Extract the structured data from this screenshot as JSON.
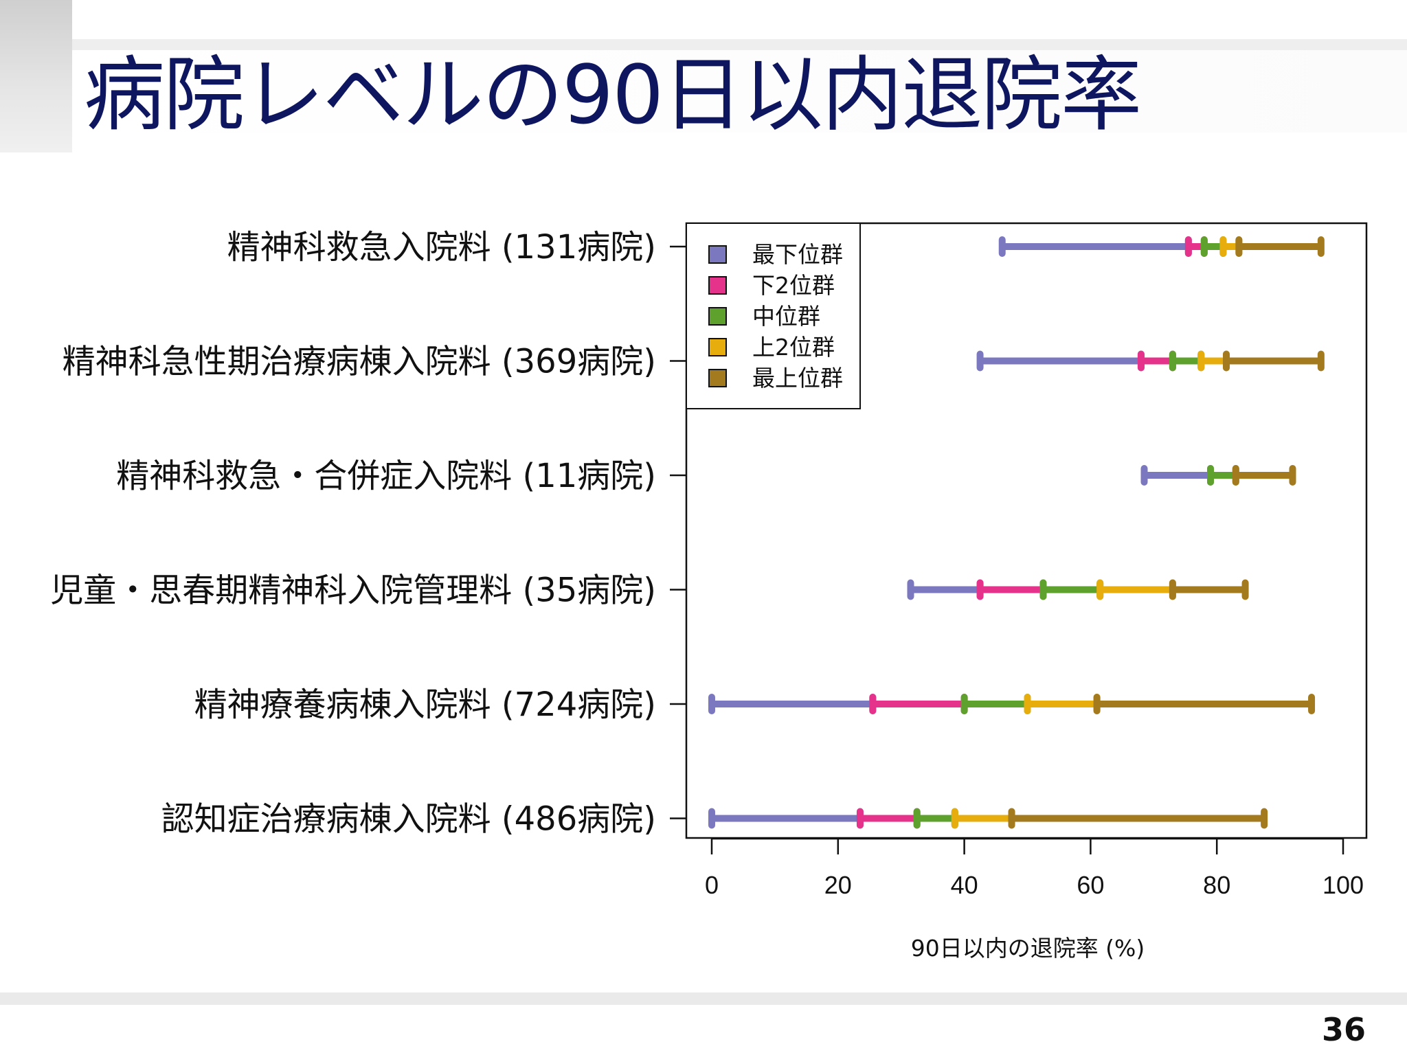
{
  "slide": {
    "title": "病院レベルの90日以内退院率",
    "page_number": "36"
  },
  "colors": {
    "title": "#0f1660",
    "series": [
      "#7b78c0",
      "#e5338c",
      "#5ea12c",
      "#e7ad0d",
      "#a47a1f"
    ]
  },
  "chart_data": {
    "type": "range-segments",
    "xlabel": "90日以内の退院率 (%)",
    "xlim": [
      0,
      100
    ],
    "xticks": [
      0,
      20,
      40,
      60,
      80,
      100
    ],
    "legend_position": "top-left",
    "series": [
      {
        "name": "最下位群",
        "color": "#7b78c0"
      },
      {
        "name": "下2位群",
        "color": "#e5338c"
      },
      {
        "name": "中位群",
        "color": "#5ea12c"
      },
      {
        "name": "上2位群",
        "color": "#e7ad0d"
      },
      {
        "name": "最上位群",
        "color": "#a47a1f"
      }
    ],
    "categories": [
      {
        "label": "精神科救急入院料 (131病院)",
        "breakpoints": [
          46,
          75.5,
          78,
          81,
          83.5,
          96.5
        ]
      },
      {
        "label": "精神科急性期治療病棟入院料 (369病院)",
        "breakpoints": [
          42.5,
          68,
          73,
          77.5,
          81.5,
          96.5
        ]
      },
      {
        "label": "精神科救急・合併症入院料 (11病院)",
        "breakpoints": [
          68.5,
          79,
          79,
          83,
          83,
          92
        ]
      },
      {
        "label": "児童・思春期精神科入院管理料 (35病院)",
        "breakpoints": [
          31.5,
          42.5,
          52.5,
          61.5,
          73,
          84.5
        ]
      },
      {
        "label": "精神療養病棟入院料 (724病院)",
        "breakpoints": [
          0,
          25.5,
          40,
          50,
          61,
          95
        ]
      },
      {
        "label": "認知症治療病棟入院料 (486病院)",
        "breakpoints": [
          0,
          23.5,
          32.5,
          38.5,
          47.5,
          87.5
        ]
      }
    ]
  }
}
